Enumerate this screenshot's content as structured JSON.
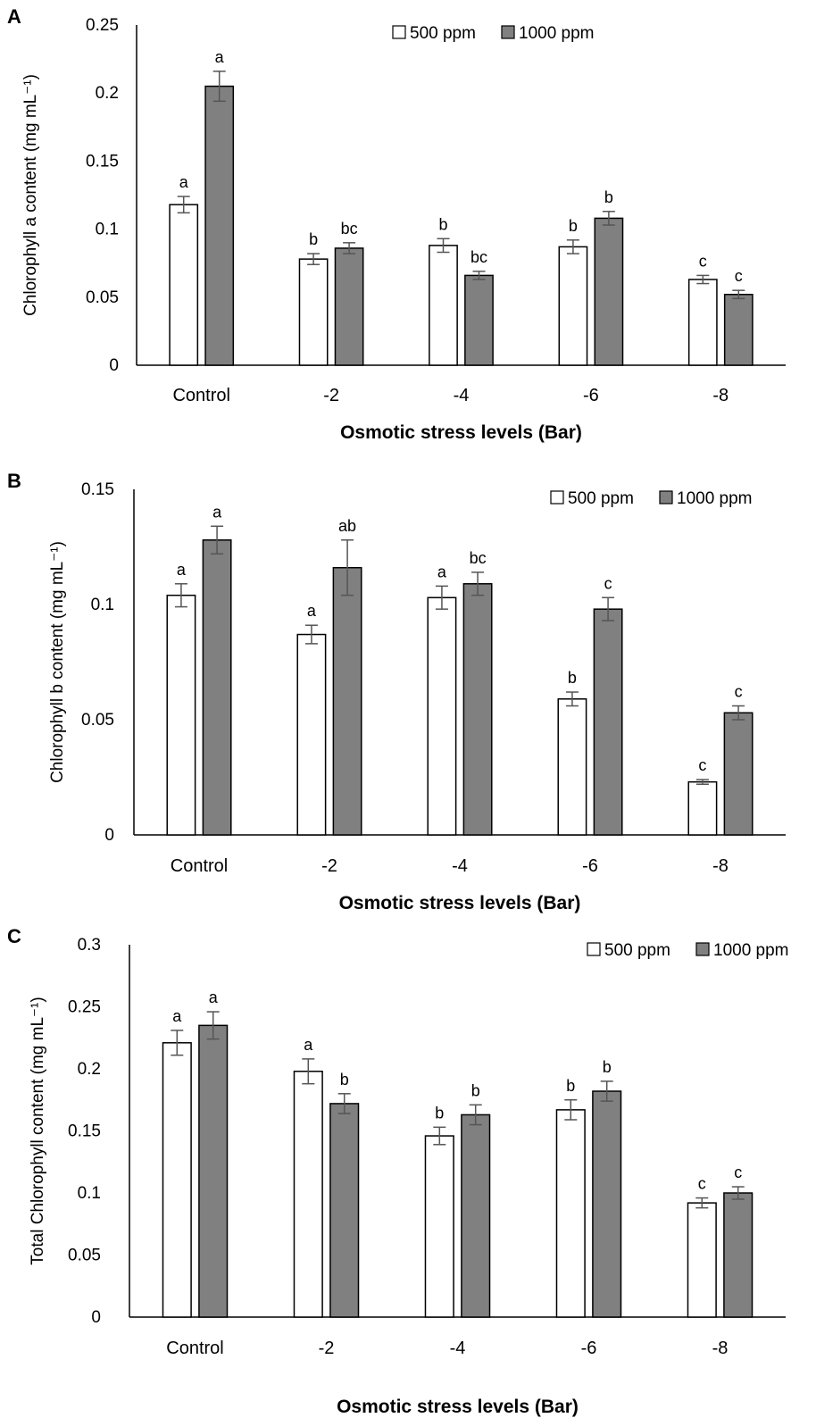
{
  "figure": {
    "legend": {
      "series1": "500 ppm",
      "series2": "1000 ppm"
    },
    "colors": {
      "series1": "#ffffff",
      "series2": "#808080",
      "axis": "#000000",
      "error": "#555555"
    }
  },
  "chart_data": [
    {
      "type": "bar",
      "panel": "A",
      "title": "",
      "xlabel": "Osmotic stress levels (Bar)",
      "ylabel": "Chlorophyll a content (mg mL⁻¹)",
      "categories": [
        "Control",
        "-2",
        "-4",
        "-6",
        "-8"
      ],
      "ylim": [
        0,
        0.25
      ],
      "yticks": [
        0,
        0.05,
        0.1,
        0.15,
        0.2,
        0.25
      ],
      "ytick_labels": [
        "0",
        "0.05",
        "0.1",
        "0.15",
        "0.2",
        "0.25"
      ],
      "legend_position": "top-right",
      "series": [
        {
          "name": "500 ppm",
          "values": [
            0.118,
            0.078,
            0.088,
            0.087,
            0.063
          ],
          "errors": [
            0.006,
            0.004,
            0.005,
            0.005,
            0.003
          ],
          "letters": [
            "a",
            "b",
            "b",
            "b",
            "c"
          ]
        },
        {
          "name": "1000 ppm",
          "values": [
            0.205,
            0.086,
            0.066,
            0.108,
            0.052
          ],
          "errors": [
            0.011,
            0.004,
            0.003,
            0.005,
            0.003
          ],
          "letters": [
            "a",
            "bc",
            "bc",
            "b",
            "c"
          ]
        }
      ]
    },
    {
      "type": "bar",
      "panel": "B",
      "title": "",
      "xlabel": "Osmotic stress levels (Bar)",
      "ylabel": "Chlorophyll b content (mg mL⁻¹)",
      "categories": [
        "Control",
        "-2",
        "-4",
        "-6",
        "-8"
      ],
      "ylim": [
        0,
        0.15
      ],
      "yticks": [
        0,
        0.05,
        0.1,
        0.15
      ],
      "ytick_labels": [
        "0",
        "0.05",
        "0.1",
        "0.15"
      ],
      "legend_position": "top-right",
      "series": [
        {
          "name": "500 ppm",
          "values": [
            0.104,
            0.087,
            0.103,
            0.059,
            0.023
          ],
          "errors": [
            0.005,
            0.004,
            0.005,
            0.003,
            0.001
          ],
          "letters": [
            "a",
            "a",
            "a",
            "b",
            "c"
          ]
        },
        {
          "name": "1000 ppm",
          "values": [
            0.128,
            0.116,
            0.109,
            0.098,
            0.053
          ],
          "errors": [
            0.006,
            0.012,
            0.005,
            0.005,
            0.003
          ],
          "letters": [
            "a",
            "ab",
            "bc",
            "c",
            "c"
          ]
        }
      ]
    },
    {
      "type": "bar",
      "panel": "C",
      "title": "",
      "xlabel": "Osmotic stress levels (Bar)",
      "ylabel": "Total Chlorophyll content (mg mL⁻¹)",
      "categories": [
        "Control",
        "-2",
        "-4",
        "-6",
        "-8"
      ],
      "ylim": [
        0,
        0.3
      ],
      "yticks": [
        0,
        0.05,
        0.1,
        0.15,
        0.2,
        0.25,
        0.3
      ],
      "ytick_labels": [
        "0",
        "0.05",
        "0.1",
        "0.15",
        "0.2",
        "0.25",
        "0.3"
      ],
      "legend_position": "top-right",
      "series": [
        {
          "name": "500 ppm",
          "values": [
            0.221,
            0.198,
            0.146,
            0.167,
            0.092
          ],
          "errors": [
            0.01,
            0.01,
            0.007,
            0.008,
            0.004
          ],
          "letters": [
            "a",
            "a",
            "b",
            "b",
            "c"
          ]
        },
        {
          "name": "1000 ppm",
          "values": [
            0.235,
            0.172,
            0.163,
            0.182,
            0.1
          ],
          "errors": [
            0.011,
            0.008,
            0.008,
            0.008,
            0.005
          ],
          "letters": [
            "a",
            "b",
            "b",
            "b",
            "c"
          ]
        }
      ]
    }
  ]
}
